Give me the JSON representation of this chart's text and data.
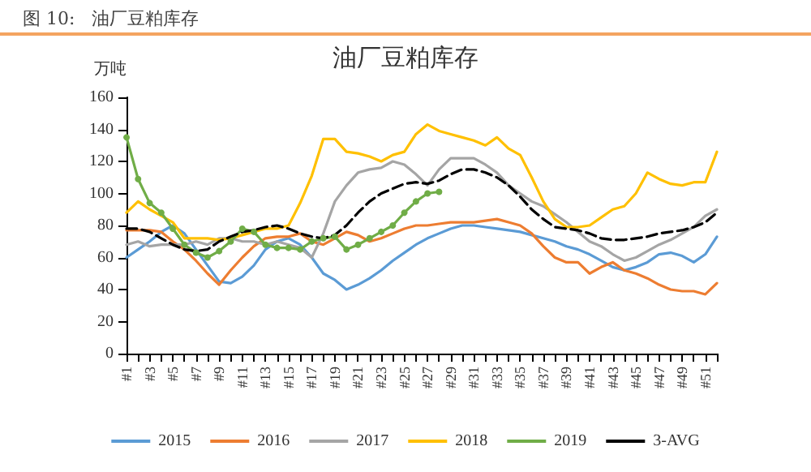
{
  "chart_data": {
    "type": "line",
    "subtitle": "图 10:   油厂豆粕库存",
    "title": "油厂豆粕库存",
    "ylabel": "万吨",
    "categories": [
      "#1",
      null,
      "#3",
      null,
      "#5",
      null,
      "#7",
      null,
      "#9",
      null,
      "#11",
      null,
      "#13",
      null,
      "#15",
      null,
      "#17",
      null,
      "#19",
      null,
      "#21",
      null,
      "#23",
      null,
      "#25",
      null,
      "#27",
      null,
      "#29",
      null,
      "#31",
      null,
      "#33",
      null,
      "#35",
      null,
      "#37",
      null,
      "#39",
      null,
      "#41",
      null,
      "#43",
      null,
      "#45",
      null,
      "#47",
      null,
      "#49",
      null,
      "#51",
      null
    ],
    "ylim": [
      0,
      160
    ],
    "yticks": [
      0,
      20,
      40,
      60,
      80,
      100,
      120,
      140,
      160
    ],
    "grid": false,
    "legend": "bottom",
    "marker": "none",
    "line_style": "solid",
    "series": [
      {
        "name": "2015",
        "color": "#5b9bd5",
        "values": [
          60,
          65,
          70,
          76,
          80,
          75,
          65,
          55,
          45,
          44,
          48,
          55,
          65,
          70,
          72,
          68,
          60,
          50,
          46,
          40,
          43,
          47,
          52,
          58,
          63,
          68,
          72,
          75,
          78,
          80,
          80,
          79,
          78,
          77,
          76,
          74,
          72,
          70,
          67,
          65,
          62,
          58,
          54,
          52,
          54,
          57,
          62,
          63,
          61,
          57,
          62,
          73
        ]
      },
      {
        "name": "2016",
        "color": "#ed7d31",
        "values": [
          77,
          77,
          77,
          76,
          70,
          65,
          58,
          50,
          43,
          52,
          60,
          67,
          72,
          73,
          73,
          75,
          70,
          68,
          72,
          76,
          74,
          70,
          72,
          75,
          78,
          80,
          80,
          81,
          82,
          82,
          82,
          83,
          84,
          82,
          80,
          75,
          67,
          60,
          57,
          57,
          50,
          54,
          57,
          52,
          50,
          47,
          43,
          40,
          39,
          39,
          37,
          44
        ]
      },
      {
        "name": "2017",
        "color": "#a5a5a5",
        "values": [
          68,
          70,
          67,
          68,
          68,
          68,
          70,
          68,
          72,
          72,
          70,
          70,
          68,
          70,
          68,
          66,
          60,
          75,
          95,
          105,
          113,
          115,
          116,
          120,
          118,
          112,
          105,
          115,
          122,
          122,
          122,
          118,
          113,
          105,
          100,
          95,
          92,
          87,
          82,
          76,
          70,
          67,
          62,
          58,
          60,
          64,
          68,
          71,
          75,
          79,
          86,
          90
        ]
      },
      {
        "name": "2018",
        "color": "#ffc000",
        "values": [
          88,
          95,
          90,
          86,
          82,
          72,
          72,
          72,
          71,
          72,
          74,
          76,
          78,
          78,
          80,
          94,
          111,
          134,
          134,
          126,
          125,
          123,
          120,
          124,
          126,
          137,
          143,
          139,
          137,
          135,
          133,
          130,
          135,
          128,
          124,
          110,
          95,
          84,
          79,
          79,
          80,
          85,
          90,
          92,
          100,
          113,
          109,
          106,
          105,
          107,
          107,
          126
        ]
      },
      {
        "name": "2019",
        "color": "#70ad47",
        "marker": "circle",
        "values": [
          135,
          109,
          94,
          88,
          78,
          68,
          63,
          60,
          64,
          70,
          78,
          76,
          68,
          66,
          66,
          65,
          70,
          72,
          73,
          65,
          68,
          72,
          76,
          80,
          88,
          95,
          100,
          101,
          null,
          null,
          null,
          null,
          null,
          null,
          null,
          null,
          null,
          null,
          null,
          null,
          null,
          null,
          null,
          null,
          null,
          null,
          null,
          null,
          null,
          null,
          null,
          null
        ]
      },
      {
        "name": "3-AVG",
        "color": "#000000",
        "line_style": "dashed",
        "values": [
          78,
          78,
          76,
          72,
          68,
          65,
          64,
          65,
          70,
          73,
          76,
          77,
          79,
          80,
          78,
          75,
          73,
          72,
          74,
          80,
          88,
          95,
          100,
          103,
          106,
          107,
          106,
          108,
          112,
          115,
          115,
          113,
          110,
          105,
          98,
          90,
          84,
          79,
          78,
          77,
          75,
          72,
          71,
          71,
          72,
          73,
          75,
          76,
          77,
          79,
          82,
          88
        ]
      }
    ]
  }
}
